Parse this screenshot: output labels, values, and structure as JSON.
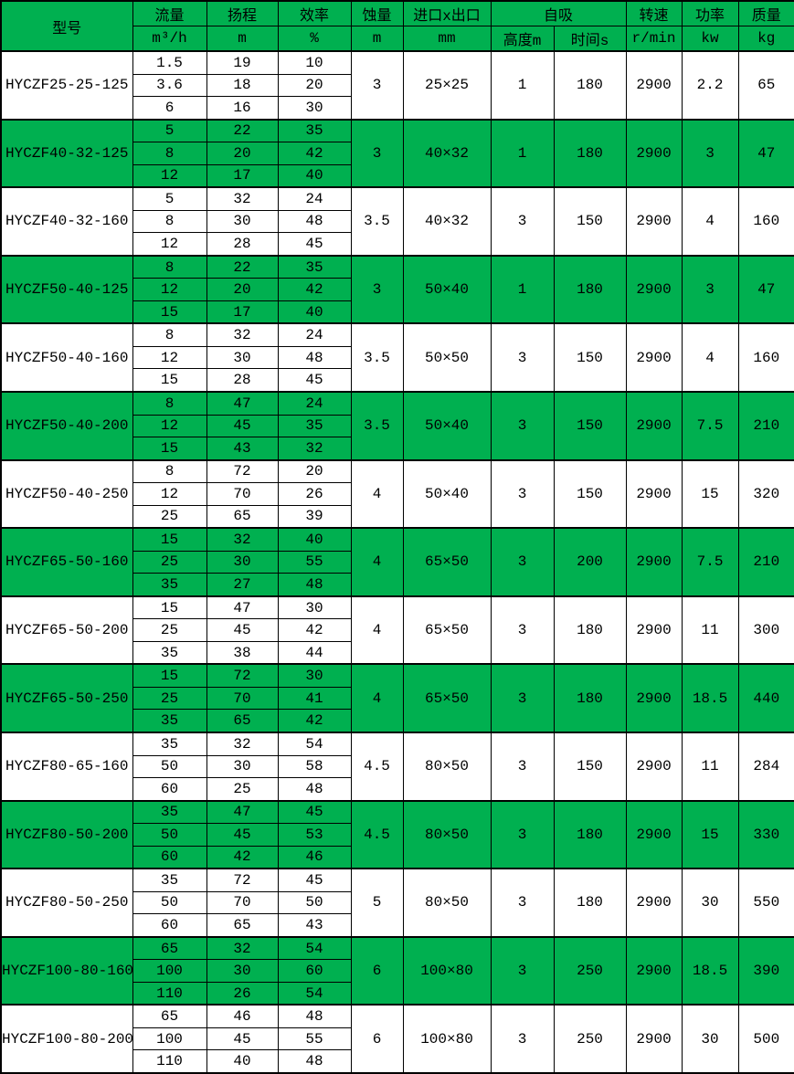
{
  "colors": {
    "highlight_green": "#00B050",
    "row_white": "#FFFFFF",
    "border": "#000000"
  },
  "table": {
    "headers": {
      "model": "型号",
      "flow": "流量",
      "flow_unit": "m³/h",
      "head": "扬程",
      "head_unit": "m",
      "eff": "效率",
      "eff_unit": "%",
      "npsh": "蚀量",
      "npsh_unit": "m",
      "ports": "进口x出口",
      "ports_unit": "mm",
      "selfprime": "自吸",
      "sp_height": "高度m",
      "sp_time": "时间s",
      "speed": "转速",
      "speed_unit": "r/min",
      "power": "功率",
      "power_unit": "kw",
      "mass": "质量",
      "mass_unit": "kg"
    },
    "groups": [
      {
        "model": "HYCZF25-25-125",
        "highlight": false,
        "rows": [
          [
            "1.5",
            "19",
            "10"
          ],
          [
            "3.6",
            "18",
            "20"
          ],
          [
            "6",
            "16",
            "30"
          ]
        ],
        "npsh": "3",
        "ports": "25×25",
        "sp_height": "1",
        "sp_time": "180",
        "speed": "2900",
        "power": "2.2",
        "mass": "65"
      },
      {
        "model": "HYCZF40-32-125",
        "highlight": true,
        "rows": [
          [
            "5",
            "22",
            "35"
          ],
          [
            "8",
            "20",
            "42"
          ],
          [
            "12",
            "17",
            "40"
          ]
        ],
        "npsh": "3",
        "ports": "40×32",
        "sp_height": "1",
        "sp_time": "180",
        "speed": "2900",
        "power": "3",
        "mass": "47"
      },
      {
        "model": "HYCZF40-32-160",
        "highlight": false,
        "rows": [
          [
            "5",
            "32",
            "24"
          ],
          [
            "8",
            "30",
            "48"
          ],
          [
            "12",
            "28",
            "45"
          ]
        ],
        "npsh": "3.5",
        "ports": "40×32",
        "sp_height": "3",
        "sp_time": "150",
        "speed": "2900",
        "power": "4",
        "mass": "160"
      },
      {
        "model": "HYCZF50-40-125",
        "highlight": true,
        "rows": [
          [
            "8",
            "22",
            "35"
          ],
          [
            "12",
            "20",
            "42"
          ],
          [
            "15",
            "17",
            "40"
          ]
        ],
        "npsh": "3",
        "ports": "50×40",
        "sp_height": "1",
        "sp_time": "180",
        "speed": "2900",
        "power": "3",
        "mass": "47"
      },
      {
        "model": "HYCZF50-40-160",
        "highlight": false,
        "rows": [
          [
            "8",
            "32",
            "24"
          ],
          [
            "12",
            "30",
            "48"
          ],
          [
            "15",
            "28",
            "45"
          ]
        ],
        "npsh": "3.5",
        "ports": "50×50",
        "sp_height": "3",
        "sp_time": "150",
        "speed": "2900",
        "power": "4",
        "mass": "160"
      },
      {
        "model": "HYCZF50-40-200",
        "highlight": true,
        "rows": [
          [
            "8",
            "47",
            "24"
          ],
          [
            "12",
            "45",
            "35"
          ],
          [
            "15",
            "43",
            "32"
          ]
        ],
        "npsh": "3.5",
        "ports": "50×40",
        "sp_height": "3",
        "sp_time": "150",
        "speed": "2900",
        "power": "7.5",
        "mass": "210"
      },
      {
        "model": "HYCZF50-40-250",
        "highlight": false,
        "rows": [
          [
            "8",
            "72",
            "20"
          ],
          [
            "12",
            "70",
            "26"
          ],
          [
            "25",
            "65",
            "39"
          ]
        ],
        "npsh": "4",
        "ports": "50×40",
        "sp_height": "3",
        "sp_time": "150",
        "speed": "2900",
        "power": "15",
        "mass": "320"
      },
      {
        "model": "HYCZF65-50-160",
        "highlight": true,
        "rows": [
          [
            "15",
            "32",
            "40"
          ],
          [
            "25",
            "30",
            "55"
          ],
          [
            "35",
            "27",
            "48"
          ]
        ],
        "npsh": "4",
        "ports": "65×50",
        "sp_height": "3",
        "sp_time": "200",
        "speed": "2900",
        "power": "7.5",
        "mass": "210"
      },
      {
        "model": "HYCZF65-50-200",
        "highlight": false,
        "rows": [
          [
            "15",
            "47",
            "30"
          ],
          [
            "25",
            "45",
            "42"
          ],
          [
            "35",
            "38",
            "44"
          ]
        ],
        "npsh": "4",
        "ports": "65×50",
        "sp_height": "3",
        "sp_time": "180",
        "speed": "2900",
        "power": "11",
        "mass": "300"
      },
      {
        "model": "HYCZF65-50-250",
        "highlight": true,
        "rows": [
          [
            "15",
            "72",
            "30"
          ],
          [
            "25",
            "70",
            "41"
          ],
          [
            "35",
            "65",
            "42"
          ]
        ],
        "npsh": "4",
        "ports": "65×50",
        "sp_height": "3",
        "sp_time": "180",
        "speed": "2900",
        "power": "18.5",
        "mass": "440"
      },
      {
        "model": "HYCZF80-65-160",
        "highlight": false,
        "rows": [
          [
            "35",
            "32",
            "54"
          ],
          [
            "50",
            "30",
            "58"
          ],
          [
            "60",
            "25",
            "48"
          ]
        ],
        "npsh": "4.5",
        "ports": "80×50",
        "sp_height": "3",
        "sp_time": "150",
        "speed": "2900",
        "power": "11",
        "mass": "284"
      },
      {
        "model": "HYCZF80-50-200",
        "highlight": true,
        "rows": [
          [
            "35",
            "47",
            "45"
          ],
          [
            "50",
            "45",
            "53"
          ],
          [
            "60",
            "42",
            "46"
          ]
        ],
        "npsh": "4.5",
        "ports": "80×50",
        "sp_height": "3",
        "sp_time": "180",
        "speed": "2900",
        "power": "15",
        "mass": "330"
      },
      {
        "model": "HYCZF80-50-250",
        "highlight": false,
        "rows": [
          [
            "35",
            "72",
            "45"
          ],
          [
            "50",
            "70",
            "50"
          ],
          [
            "60",
            "65",
            "43"
          ]
        ],
        "npsh": "5",
        "ports": "80×50",
        "sp_height": "3",
        "sp_time": "180",
        "speed": "2900",
        "power": "30",
        "mass": "550"
      },
      {
        "model": "HYCZF100-80-160",
        "highlight": true,
        "rows": [
          [
            "65",
            "32",
            "54"
          ],
          [
            "100",
            "30",
            "60"
          ],
          [
            "110",
            "26",
            "54"
          ]
        ],
        "npsh": "6",
        "ports": "100×80",
        "sp_height": "3",
        "sp_time": "250",
        "speed": "2900",
        "power": "18.5",
        "mass": "390"
      },
      {
        "model": "HYCZF100-80-200",
        "highlight": false,
        "rows": [
          [
            "65",
            "46",
            "48"
          ],
          [
            "100",
            "45",
            "55"
          ],
          [
            "110",
            "40",
            "48"
          ]
        ],
        "npsh": "6",
        "ports": "100×80",
        "sp_height": "3",
        "sp_time": "250",
        "speed": "2900",
        "power": "30",
        "mass": "500"
      }
    ]
  }
}
